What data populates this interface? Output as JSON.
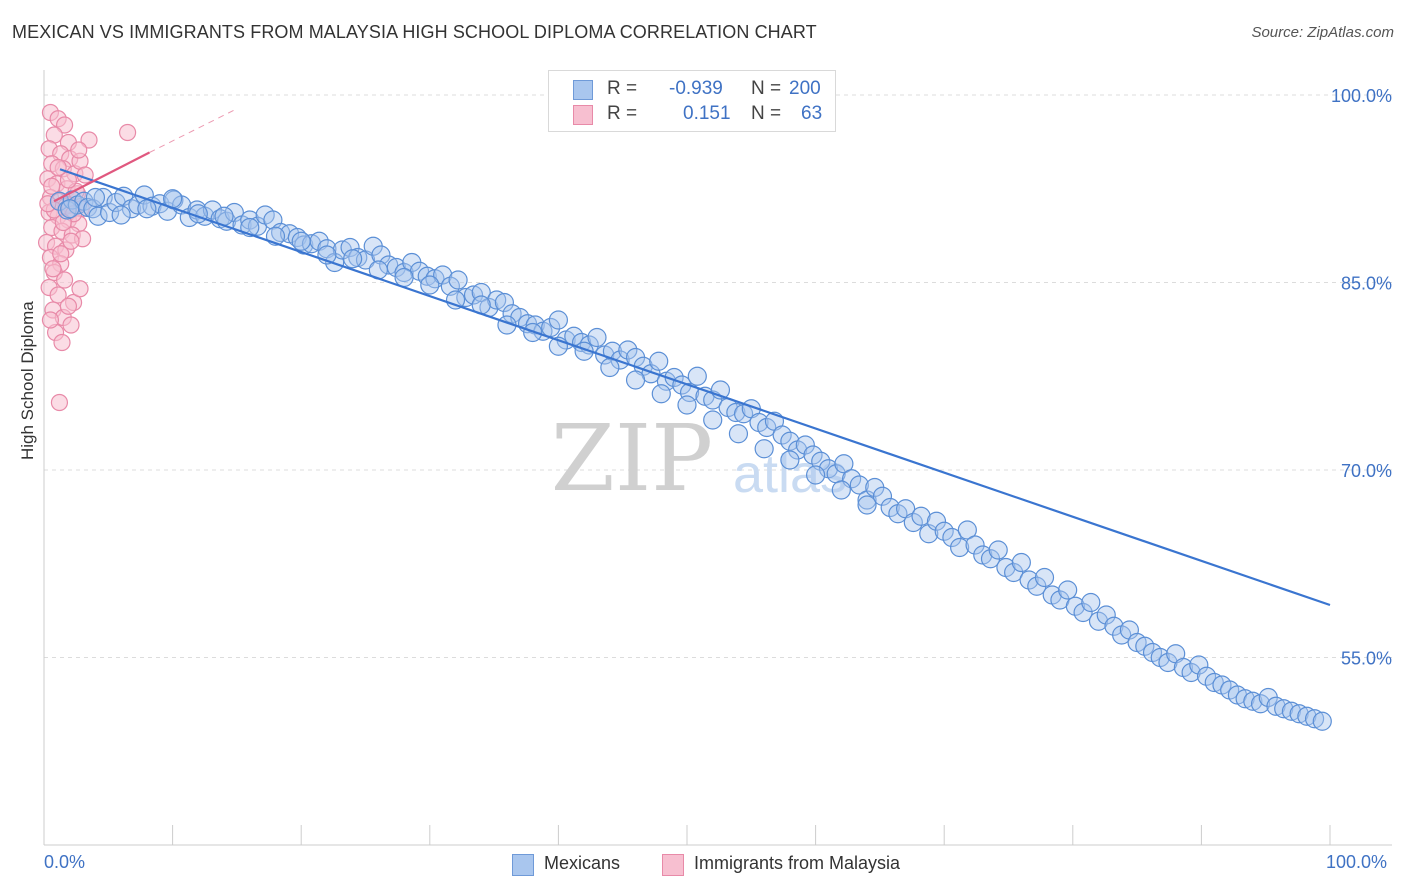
{
  "title": "MEXICAN VS IMMIGRANTS FROM MALAYSIA HIGH SCHOOL DIPLOMA CORRELATION CHART",
  "source": "Source: ZipAtlas.com",
  "watermark": {
    "zip": "ZIP",
    "atlas": "atlas"
  },
  "legend": {
    "r_label": "R =",
    "n_label": "N =",
    "rows": [
      {
        "name": "Mexicans",
        "r": "-0.939",
        "n": "200",
        "fill": "#a9c6ee",
        "stroke": "#6f9ad8"
      },
      {
        "name": "Immigrants from Malaysia",
        "r": "0.151",
        "n": "63",
        "fill": "#f7bfd0",
        "stroke": "#e88aa8"
      }
    ]
  },
  "colors": {
    "blue_fill": "#a9c6ee",
    "blue_stroke": "#5b8fd6",
    "blue_line": "#3a75d0",
    "pink_fill": "#f7bfd0",
    "pink_stroke": "#e88aa8",
    "pink_line": "#e0587f",
    "axis_label": "#3f72c4",
    "grid": "#dcdcdc"
  },
  "chart_data": {
    "type": "scatter",
    "title": "MEXICAN VS IMMIGRANTS FROM MALAYSIA HIGH SCHOOL DIPLOMA CORRELATION CHART",
    "xlabel": "",
    "ylabel": "High School Diploma",
    "xlim": [
      0,
      100
    ],
    "ylim": [
      40,
      102
    ],
    "x_tick_labels": [
      "0.0%",
      "100.0%"
    ],
    "y_ticks": [
      100,
      85,
      70,
      55
    ],
    "y_tick_labels": [
      "100.0%",
      "85.0%",
      "70.0%",
      "55.0%"
    ],
    "grid": true,
    "legend_position": "top-center",
    "series": [
      {
        "name": "Mexicans",
        "trendline": {
          "x": [
            0,
            100
          ],
          "y": [
            94.5,
            59.2
          ]
        },
        "points": [
          [
            1.2,
            91.5
          ],
          [
            1.8,
            90.8
          ],
          [
            2.2,
            91.6
          ],
          [
            2.6,
            91.2
          ],
          [
            3.1,
            91.5
          ],
          [
            3.4,
            91.0
          ],
          [
            3.8,
            90.9
          ],
          [
            4.2,
            90.3
          ],
          [
            4.6,
            91.8
          ],
          [
            5.1,
            90.6
          ],
          [
            5.6,
            91.4
          ],
          [
            6.2,
            91.9
          ],
          [
            6.8,
            90.9
          ],
          [
            7.3,
            91.2
          ],
          [
            7.8,
            92.0
          ],
          [
            8.4,
            91.1
          ],
          [
            9.0,
            91.3
          ],
          [
            9.6,
            90.7
          ],
          [
            10.1,
            91.6
          ],
          [
            10.7,
            91.2
          ],
          [
            11.3,
            90.2
          ],
          [
            11.9,
            90.8
          ],
          [
            12.5,
            90.3
          ],
          [
            13.1,
            90.8
          ],
          [
            13.7,
            90.1
          ],
          [
            14.2,
            89.9
          ],
          [
            14.8,
            90.6
          ],
          [
            15.4,
            89.6
          ],
          [
            16.0,
            90.0
          ],
          [
            16.6,
            89.5
          ],
          [
            17.2,
            90.4
          ],
          [
            17.8,
            90.0
          ],
          [
            18.4,
            89.0
          ],
          [
            19.1,
            88.9
          ],
          [
            19.7,
            88.6
          ],
          [
            20.2,
            88.0
          ],
          [
            20.8,
            88.1
          ],
          [
            21.4,
            88.3
          ],
          [
            22.0,
            87.7
          ],
          [
            22.6,
            86.6
          ],
          [
            23.2,
            87.6
          ],
          [
            23.8,
            87.8
          ],
          [
            24.4,
            87.0
          ],
          [
            25.0,
            86.8
          ],
          [
            25.6,
            87.9
          ],
          [
            26.2,
            87.2
          ],
          [
            26.8,
            86.4
          ],
          [
            27.4,
            86.2
          ],
          [
            28.0,
            85.8
          ],
          [
            28.6,
            86.6
          ],
          [
            29.2,
            85.9
          ],
          [
            29.8,
            85.5
          ],
          [
            30.4,
            85.3
          ],
          [
            31.0,
            85.6
          ],
          [
            31.6,
            84.7
          ],
          [
            32.2,
            85.2
          ],
          [
            32.8,
            83.8
          ],
          [
            33.4,
            84.0
          ],
          [
            34.0,
            84.2
          ],
          [
            34.6,
            83.0
          ],
          [
            35.2,
            83.6
          ],
          [
            35.8,
            83.4
          ],
          [
            36.4,
            82.5
          ],
          [
            37.0,
            82.2
          ],
          [
            37.6,
            81.7
          ],
          [
            38.2,
            81.6
          ],
          [
            38.8,
            81.1
          ],
          [
            39.4,
            81.4
          ],
          [
            40.0,
            82.0
          ],
          [
            40.6,
            80.4
          ],
          [
            41.2,
            80.7
          ],
          [
            41.8,
            80.2
          ],
          [
            42.4,
            80.0
          ],
          [
            43.0,
            80.6
          ],
          [
            43.6,
            79.2
          ],
          [
            44.2,
            79.5
          ],
          [
            44.8,
            78.8
          ],
          [
            45.4,
            79.6
          ],
          [
            46.0,
            79.0
          ],
          [
            46.6,
            78.3
          ],
          [
            47.2,
            77.7
          ],
          [
            47.8,
            78.7
          ],
          [
            48.4,
            77.1
          ],
          [
            49.0,
            77.4
          ],
          [
            49.6,
            76.8
          ],
          [
            50.2,
            76.2
          ],
          [
            50.8,
            77.5
          ],
          [
            51.4,
            75.9
          ],
          [
            52.0,
            75.6
          ],
          [
            52.6,
            76.4
          ],
          [
            53.2,
            75.0
          ],
          [
            53.8,
            74.6
          ],
          [
            54.4,
            74.5
          ],
          [
            55.0,
            74.9
          ],
          [
            55.6,
            73.8
          ],
          [
            56.2,
            73.4
          ],
          [
            56.8,
            73.9
          ],
          [
            57.4,
            72.8
          ],
          [
            58.0,
            72.3
          ],
          [
            58.6,
            71.6
          ],
          [
            59.2,
            72.0
          ],
          [
            59.8,
            71.2
          ],
          [
            60.4,
            70.7
          ],
          [
            61.0,
            70.1
          ],
          [
            61.6,
            69.7
          ],
          [
            62.2,
            70.5
          ],
          [
            62.8,
            69.3
          ],
          [
            63.4,
            68.8
          ],
          [
            64.0,
            67.6
          ],
          [
            64.6,
            68.6
          ],
          [
            65.2,
            67.9
          ],
          [
            65.8,
            67.0
          ],
          [
            66.4,
            66.5
          ],
          [
            67.0,
            66.9
          ],
          [
            67.6,
            65.8
          ],
          [
            68.2,
            66.3
          ],
          [
            68.8,
            64.9
          ],
          [
            69.4,
            65.9
          ],
          [
            70.0,
            65.1
          ],
          [
            70.6,
            64.6
          ],
          [
            71.2,
            63.8
          ],
          [
            71.8,
            65.2
          ],
          [
            72.4,
            64.0
          ],
          [
            73.0,
            63.2
          ],
          [
            73.6,
            62.9
          ],
          [
            74.2,
            63.6
          ],
          [
            74.8,
            62.2
          ],
          [
            75.4,
            61.8
          ],
          [
            76.0,
            62.6
          ],
          [
            76.6,
            61.2
          ],
          [
            77.2,
            60.7
          ],
          [
            77.8,
            61.4
          ],
          [
            78.4,
            60.0
          ],
          [
            79.0,
            59.6
          ],
          [
            79.6,
            60.4
          ],
          [
            80.2,
            59.1
          ],
          [
            80.8,
            58.6
          ],
          [
            81.4,
            59.4
          ],
          [
            82.0,
            57.9
          ],
          [
            82.6,
            58.4
          ],
          [
            83.2,
            57.5
          ],
          [
            83.8,
            56.8
          ],
          [
            84.4,
            57.2
          ],
          [
            85.0,
            56.2
          ],
          [
            85.6,
            55.9
          ],
          [
            86.2,
            55.4
          ],
          [
            86.8,
            55.0
          ],
          [
            87.4,
            54.6
          ],
          [
            88.0,
            55.3
          ],
          [
            88.6,
            54.2
          ],
          [
            89.2,
            53.8
          ],
          [
            89.8,
            54.4
          ],
          [
            90.4,
            53.5
          ],
          [
            91.0,
            53.0
          ],
          [
            91.6,
            52.8
          ],
          [
            92.2,
            52.4
          ],
          [
            92.8,
            52.0
          ],
          [
            93.4,
            51.7
          ],
          [
            94.0,
            51.5
          ],
          [
            94.6,
            51.3
          ],
          [
            95.2,
            51.8
          ],
          [
            95.8,
            51.1
          ],
          [
            96.4,
            50.9
          ],
          [
            97.0,
            50.7
          ],
          [
            97.6,
            50.5
          ],
          [
            98.2,
            50.3
          ],
          [
            98.8,
            50.1
          ],
          [
            99.4,
            49.9
          ],
          [
            2.0,
            90.9
          ],
          [
            4.0,
            91.8
          ],
          [
            6.0,
            90.4
          ],
          [
            8.0,
            90.9
          ],
          [
            10.0,
            91.7
          ],
          [
            12.0,
            90.5
          ],
          [
            14.0,
            90.3
          ],
          [
            16.0,
            89.4
          ],
          [
            18.0,
            88.7
          ],
          [
            20.0,
            88.3
          ],
          [
            22.0,
            87.2
          ],
          [
            24.0,
            86.9
          ],
          [
            26.0,
            86.0
          ],
          [
            28.0,
            85.4
          ],
          [
            30.0,
            84.8
          ],
          [
            32.0,
            83.6
          ],
          [
            34.0,
            83.2
          ],
          [
            36.0,
            81.6
          ],
          [
            38.0,
            81.0
          ],
          [
            40.0,
            79.9
          ],
          [
            42.0,
            79.5
          ],
          [
            44.0,
            78.2
          ],
          [
            46.0,
            77.2
          ],
          [
            48.0,
            76.1
          ],
          [
            50.0,
            75.2
          ],
          [
            52.0,
            74.0
          ],
          [
            54.0,
            72.9
          ],
          [
            56.0,
            71.7
          ],
          [
            58.0,
            70.8
          ],
          [
            60.0,
            69.6
          ],
          [
            62.0,
            68.4
          ],
          [
            64.0,
            67.2
          ]
        ]
      },
      {
        "name": "Immigrants from Malaysia",
        "trendline": {
          "x": [
            0,
            8.2
          ],
          "y": [
            91.2,
            95.4
          ],
          "extended": {
            "x": [
              8.2,
              15.0
            ],
            "y": [
              95.4,
              98.9
            ]
          }
        },
        "points": [
          [
            0.5,
            98.6
          ],
          [
            1.1,
            98.1
          ],
          [
            1.6,
            97.6
          ],
          [
            0.8,
            96.8
          ],
          [
            1.9,
            96.2
          ],
          [
            0.4,
            95.7
          ],
          [
            1.3,
            95.3
          ],
          [
            2.0,
            94.9
          ],
          [
            0.6,
            94.5
          ],
          [
            1.5,
            94.1
          ],
          [
            2.4,
            93.7
          ],
          [
            0.3,
            93.3
          ],
          [
            1.0,
            92.9
          ],
          [
            1.8,
            92.5
          ],
          [
            2.6,
            92.1
          ],
          [
            0.5,
            91.8
          ],
          [
            1.2,
            91.5
          ],
          [
            2.0,
            91.2
          ],
          [
            2.9,
            90.9
          ],
          [
            0.4,
            90.6
          ],
          [
            1.1,
            90.3
          ],
          [
            1.9,
            90.0
          ],
          [
            2.7,
            89.7
          ],
          [
            0.6,
            89.4
          ],
          [
            1.4,
            89.1
          ],
          [
            2.2,
            88.8
          ],
          [
            3.0,
            88.5
          ],
          [
            0.2,
            88.2
          ],
          [
            0.9,
            87.9
          ],
          [
            1.7,
            87.6
          ],
          [
            0.5,
            87.0
          ],
          [
            1.3,
            86.5
          ],
          [
            0.8,
            85.8
          ],
          [
            1.6,
            85.2
          ],
          [
            0.4,
            84.6
          ],
          [
            1.1,
            84.0
          ],
          [
            2.3,
            83.4
          ],
          [
            0.7,
            82.8
          ],
          [
            1.5,
            82.2
          ],
          [
            2.1,
            81.6
          ],
          [
            0.9,
            81.0
          ],
          [
            1.4,
            80.2
          ],
          [
            1.2,
            75.4
          ],
          [
            3.5,
            96.4
          ],
          [
            6.5,
            97.0
          ],
          [
            2.8,
            94.7
          ],
          [
            3.2,
            93.6
          ],
          [
            2.5,
            92.3
          ],
          [
            1.7,
            91.1
          ],
          [
            0.8,
            90.8
          ],
          [
            2.3,
            90.5
          ],
          [
            1.5,
            89.8
          ],
          [
            0.6,
            92.7
          ],
          [
            1.9,
            93.2
          ],
          [
            2.7,
            95.6
          ],
          [
            1.1,
            94.2
          ],
          [
            0.3,
            91.3
          ],
          [
            2.1,
            88.3
          ],
          [
            1.3,
            87.3
          ],
          [
            0.7,
            86.1
          ],
          [
            2.8,
            84.5
          ],
          [
            1.9,
            83.1
          ],
          [
            0.5,
            82.0
          ]
        ]
      }
    ]
  }
}
